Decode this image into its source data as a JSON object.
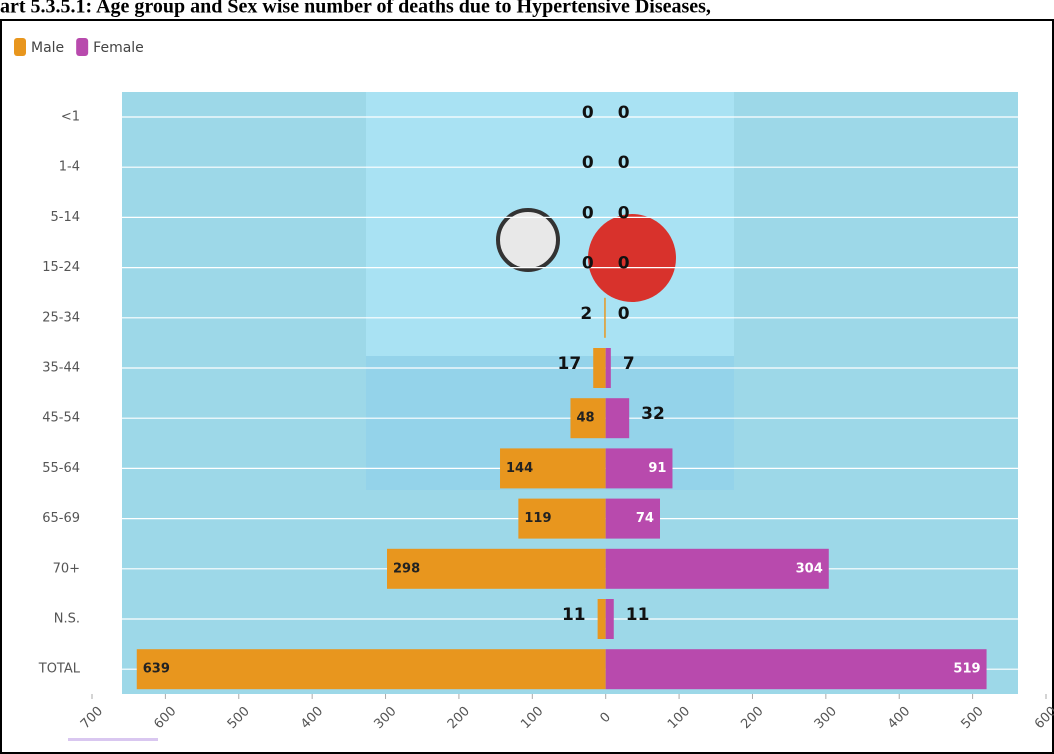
{
  "chart_data": {
    "type": "butterfly",
    "title": "art 5.3.5.1: Age group and Sex wise number of deaths due to Hypertensive Diseases,",
    "categories": [
      "<1",
      "1-4",
      "5-14",
      "15-24",
      "25-34",
      "35-44",
      "45-54",
      "55-64",
      "65-69",
      "70+",
      "N.S.",
      "TOTAL"
    ],
    "series": [
      {
        "name": "Male",
        "color": "#e8961e",
        "values": [
          0,
          0,
          0,
          0,
          2,
          17,
          48,
          144,
          119,
          298,
          11,
          639
        ]
      },
      {
        "name": "Female",
        "color": "#b84aad",
        "values": [
          0,
          0,
          0,
          0,
          0,
          7,
          32,
          91,
          74,
          304,
          11,
          519
        ]
      }
    ],
    "xlim": [
      -700,
      600
    ],
    "xticks": [
      {
        "value": -700,
        "label": "700"
      },
      {
        "value": -600,
        "label": "600"
      },
      {
        "value": -500,
        "label": "500"
      },
      {
        "value": -400,
        "label": "400"
      },
      {
        "value": -300,
        "label": "300"
      },
      {
        "value": -200,
        "label": "200"
      },
      {
        "value": -100,
        "label": "100"
      },
      0,
      100,
      200,
      300,
      400,
      500,
      600
    ],
    "grid": true,
    "legend": "top-left"
  }
}
